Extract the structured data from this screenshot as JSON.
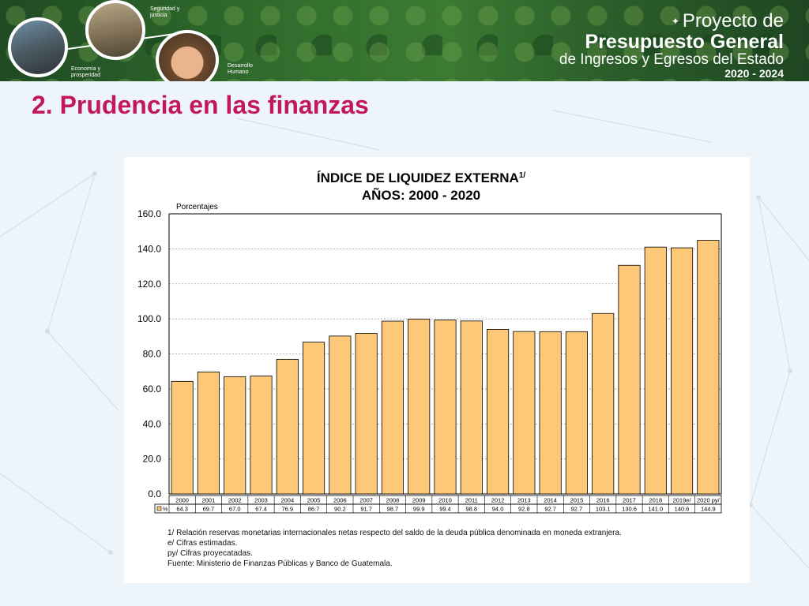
{
  "banner": {
    "captions": {
      "economia": "Economía y prosperidad",
      "seguridad": "Seguridad y justicia",
      "desarrollo": "Desarrollo Humano"
    },
    "title_line1": "Proyecto de",
    "title_line2": "Presupuesto General",
    "title_line3": "de Ingresos y Egresos del Estado",
    "title_line4": "2020 - 2024"
  },
  "slide_title": "2. Prudencia en las finanzas",
  "colors": {
    "bar_fill": "#fdc978",
    "bar_stroke": "#000000",
    "title_accent": "#c2185b"
  },
  "chart_data": {
    "type": "bar",
    "title": "ÍNDICE DE LIQUIDEZ EXTERNA",
    "title_superscript": "1/",
    "subtitle": "AÑOS: 2000 - 2020",
    "ylabel": "Porcentajes",
    "ylim": [
      0,
      160
    ],
    "yticks": [
      "0.0",
      "20.0",
      "40.0",
      "60.0",
      "80.0",
      "100.0",
      "120.0",
      "140.0",
      "160.0"
    ],
    "grid": true,
    "categories": [
      "2000",
      "2001",
      "2002",
      "2003",
      "2004",
      "2005",
      "2006",
      "2007",
      "2008",
      "2009",
      "2010",
      "2011",
      "2012",
      "2013",
      "2014",
      "2015",
      "2016",
      "2017",
      "2018",
      "2019e/",
      "2020 py/"
    ],
    "values": [
      64.3,
      69.7,
      67.0,
      67.4,
      76.9,
      86.7,
      90.2,
      91.7,
      98.7,
      99.9,
      99.4,
      98.8,
      94.0,
      92.8,
      92.7,
      92.7,
      103.1,
      130.6,
      141.0,
      140.6,
      144.9
    ],
    "value_labels": [
      "64.3",
      "69.7",
      "67.0",
      "67.4",
      "76.9",
      "86.7",
      "90.2",
      "91.7",
      "98.7",
      "99.9",
      "99.4",
      "98.8",
      "94.0",
      "92.8",
      "92.7",
      "92.7",
      "103.1",
      "130.6",
      "141.0",
      "140.6",
      "144.9"
    ],
    "table_row_label": "%"
  },
  "footnotes": {
    "n1": "1/    Relación reservas monetarias internacionales netas respecto del saldo de la deuda pública denominada en moneda extranjera.",
    "n2": "e/    Cifras estimadas.",
    "n3": "py/  Cifras proyecatadas.",
    "source": "Fuente: Ministerio de Finanzas Públicas y Banco de Guatemala."
  }
}
